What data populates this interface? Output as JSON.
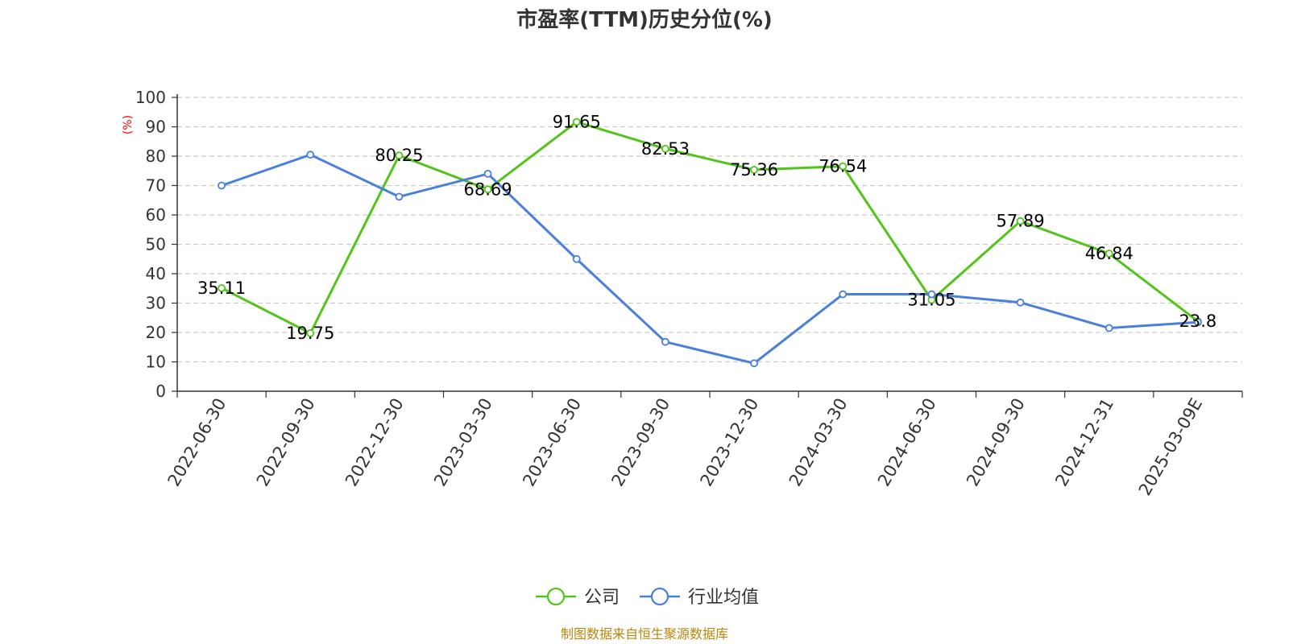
{
  "chart_data": {
    "type": "line",
    "title": "市盈率(TTM)历史分位(%)",
    "ylabel": "(%)",
    "ylim": [
      0,
      100
    ],
    "yticks": [
      0,
      10,
      20,
      30,
      40,
      50,
      60,
      70,
      80,
      90,
      100
    ],
    "categories": [
      "2022-06-30",
      "2022-09-30",
      "2022-12-30",
      "2023-03-30",
      "2023-06-30",
      "2023-09-30",
      "2023-12-30",
      "2024-03-30",
      "2024-06-30",
      "2024-09-30",
      "2024-12-31",
      "2025-03-09E"
    ],
    "grid": true,
    "legend_position": "bottom-center",
    "series": [
      {
        "name": "公司",
        "color": "#52c41a",
        "values": [
          35.11,
          19.75,
          80.25,
          68.69,
          91.65,
          82.53,
          75.36,
          76.54,
          31.05,
          57.89,
          46.84,
          23.8
        ],
        "labels": [
          "35.11",
          "19.75",
          "80.25",
          "68.69",
          "91.65",
          "82.53",
          "75.36",
          "76.54",
          "31.05",
          "57.89",
          "46.84",
          "23.8"
        ]
      },
      {
        "name": "行业均值",
        "color": "#4a7fdc",
        "values": [
          70.0,
          80.5,
          66.2,
          74.0,
          45.0,
          16.8,
          9.5,
          33.0,
          33.0,
          30.2,
          21.5,
          23.5
        ]
      }
    ]
  },
  "source": "制图数据来自恒生聚源数据库"
}
